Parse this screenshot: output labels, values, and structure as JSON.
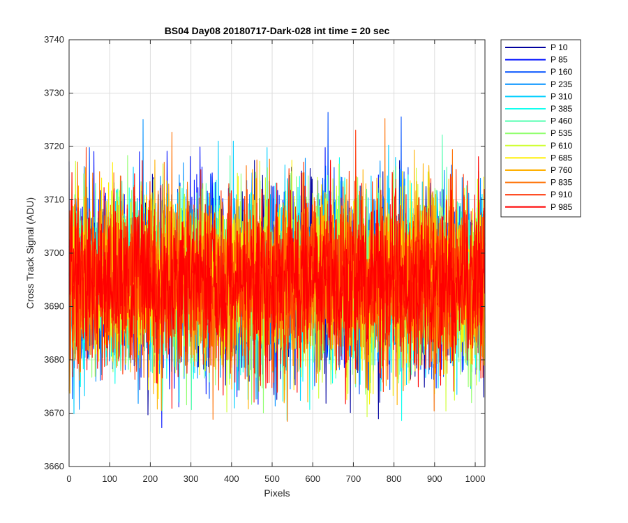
{
  "chart_data": {
    "type": "line",
    "title": "BS04 Day08 20180717-Dark-028 int time = 20 sec",
    "xlabel": "Pixels",
    "ylabel": "Cross Track Signal (ADU)",
    "xlim": [
      0,
      1024
    ],
    "ylim": [
      3660,
      3740
    ],
    "xticks": [
      "0",
      "100",
      "200",
      "300",
      "400",
      "500",
      "600",
      "700",
      "800",
      "900",
      "1000"
    ],
    "yticks": [
      "3660",
      "3670",
      "3680",
      "3690",
      "3700",
      "3710",
      "3720",
      "3730",
      "3740"
    ],
    "grid": true,
    "legend_position": "outside-top-right",
    "noise": {
      "mean": 3695,
      "sigma": 8,
      "min": 3667,
      "max": 3732,
      "points_per_series": 1024
    },
    "series": [
      {
        "name": "P 10",
        "color": "#00009f"
      },
      {
        "name": "P 85",
        "color": "#0010ff"
      },
      {
        "name": "P 160",
        "color": "#0050ff"
      },
      {
        "name": "P 235",
        "color": "#0090ff"
      },
      {
        "name": "P 310",
        "color": "#00cfff"
      },
      {
        "name": "P 385",
        "color": "#10ffef"
      },
      {
        "name": "P 460",
        "color": "#50ffaf"
      },
      {
        "name": "P 535",
        "color": "#90ff6f"
      },
      {
        "name": "P 610",
        "color": "#cfff30"
      },
      {
        "name": "P 685",
        "color": "#ffef00"
      },
      {
        "name": "P 760",
        "color": "#ffb000"
      },
      {
        "name": "P 835",
        "color": "#ff7000"
      },
      {
        "name": "P 910",
        "color": "#ff3000"
      },
      {
        "name": "P 985",
        "color": "#ff0000"
      }
    ]
  }
}
